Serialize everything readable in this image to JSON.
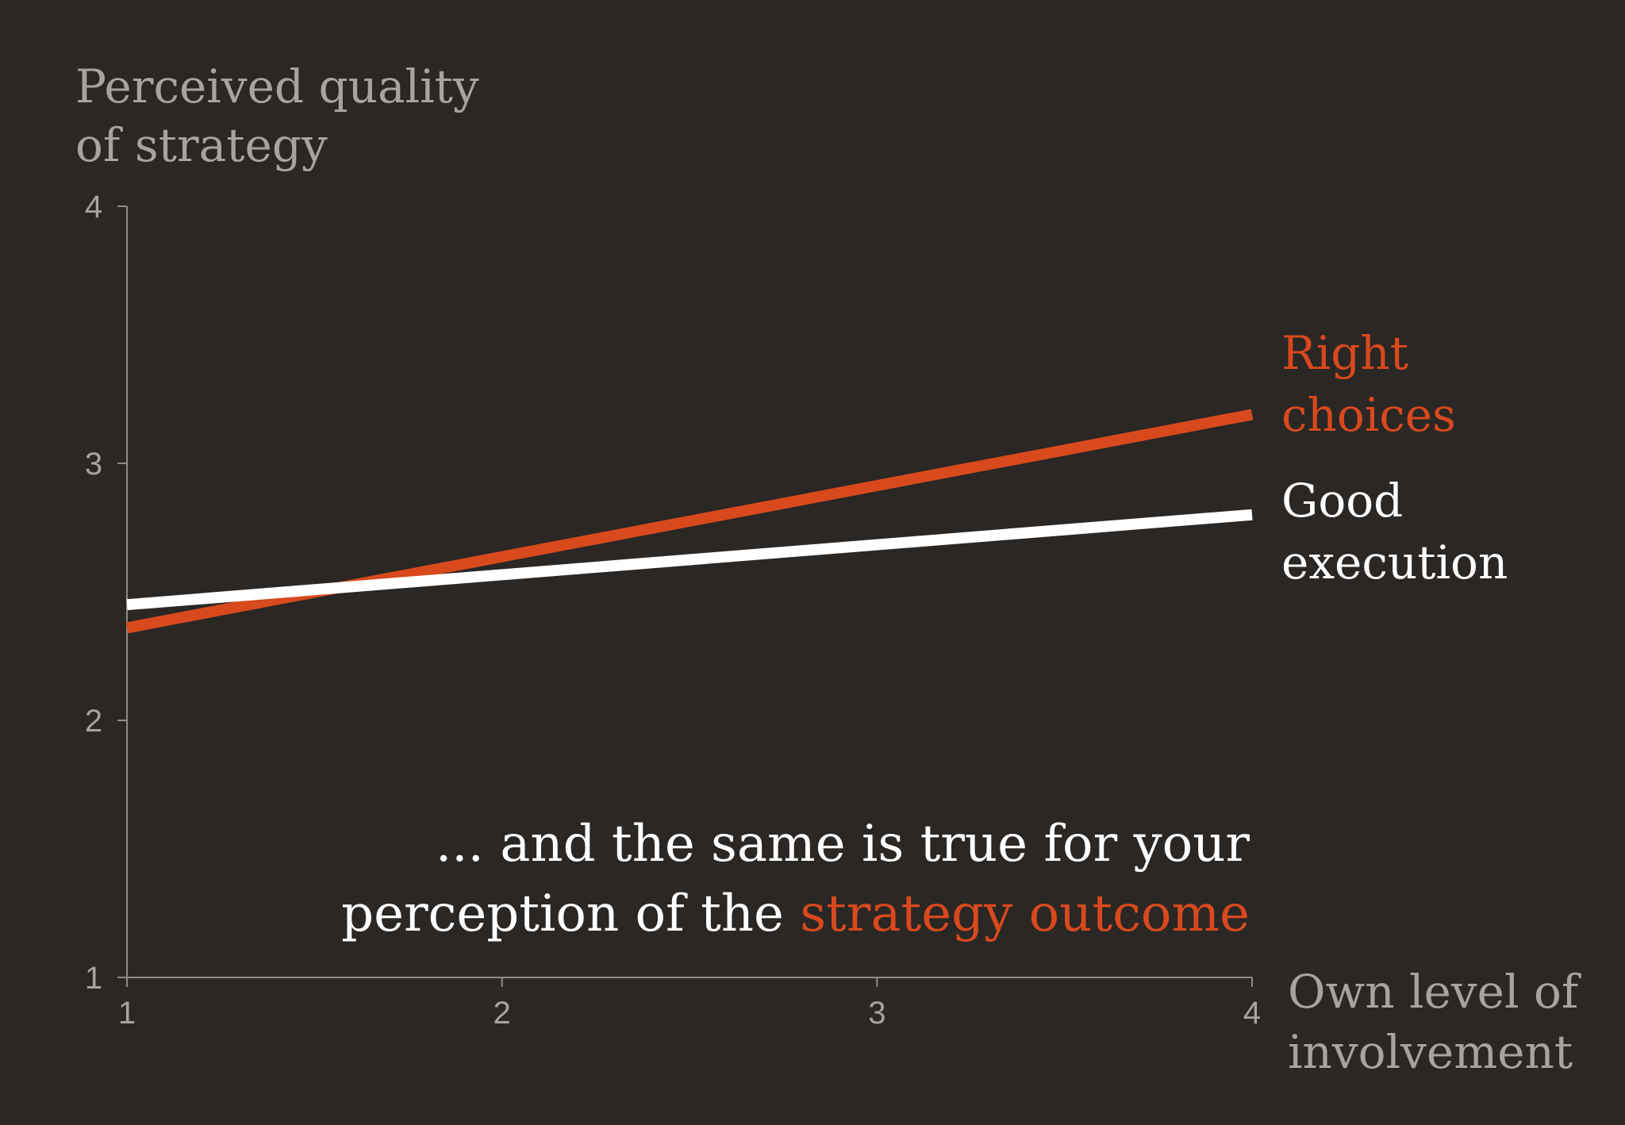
{
  "chart_data": {
    "type": "line",
    "ylabel": "Perceived quality\nof strategy",
    "xlabel": "Own level of\ninvolvement",
    "xlim": [
      1,
      4
    ],
    "ylim": [
      1,
      4
    ],
    "x_ticks": [
      "1",
      "2",
      "3",
      "4"
    ],
    "y_ticks": [
      "1",
      "2",
      "3",
      "4"
    ],
    "grid": false,
    "legend": "direct labels at line ends (right)",
    "series": [
      {
        "name": "Right\nchoices",
        "color": "#d8491d",
        "x": [
          1,
          4
        ],
        "y": [
          2.36,
          3.19
        ]
      },
      {
        "name": "Good\nexecution",
        "color": "#ffffff",
        "x": [
          1,
          4
        ],
        "y": [
          2.45,
          2.8
        ]
      }
    ],
    "annotation": {
      "line1": "... and the same is true for your",
      "line2_prefix": "perception of the ",
      "line2_highlight": "strategy outcome"
    }
  },
  "colors": {
    "background": "#2a2725",
    "axis": "#a7a39d",
    "accent": "#d8491d",
    "text": "#ffffff"
  }
}
